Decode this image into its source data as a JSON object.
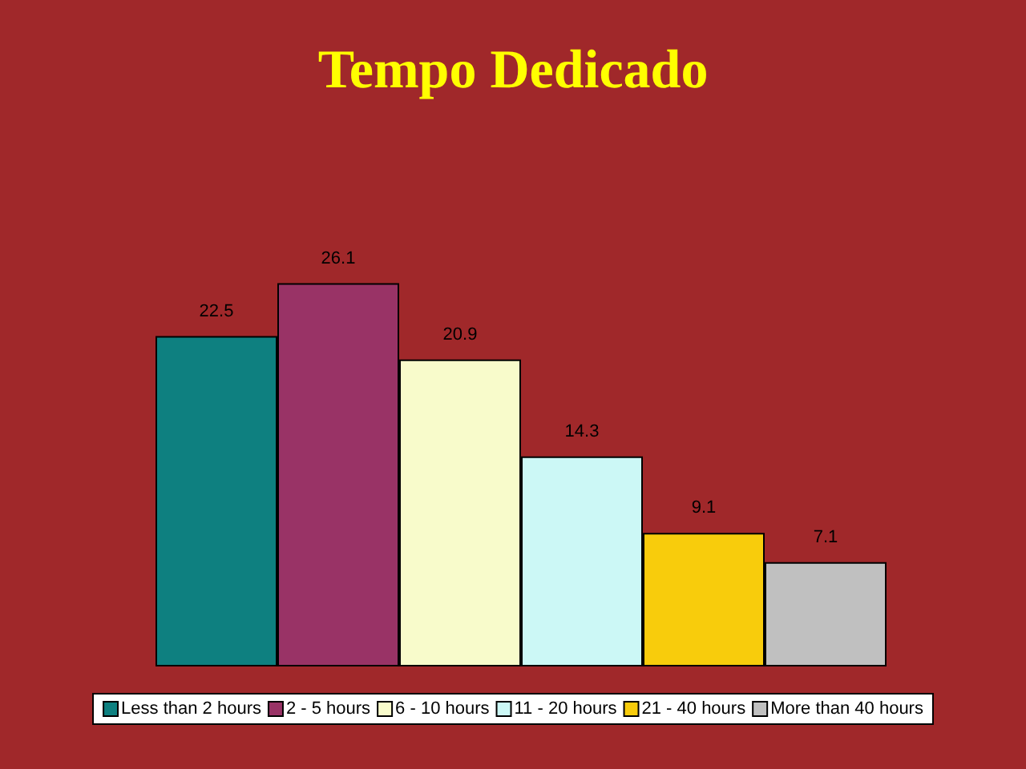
{
  "chart_data": {
    "type": "bar",
    "title": "Tempo Dedicado",
    "categories": [
      null
    ],
    "series": [
      {
        "name": "Less than 2 hours",
        "color": "#0e8080",
        "values": [
          22.5
        ]
      },
      {
        "name": "2 - 5 hours",
        "color": "#993366",
        "values": [
          26.1
        ]
      },
      {
        "name": "6 - 10 hours",
        "color": "#f8fbcb",
        "values": [
          20.9
        ]
      },
      {
        "name": "11 - 20 hours",
        "color": "#ccf8f6",
        "values": [
          14.3
        ]
      },
      {
        "name": "21 - 40 hours",
        "color": "#f8cc0c",
        "values": [
          9.1
        ]
      },
      {
        "name": "More than 40 hours",
        "color": "#c0c0c0",
        "values": [
          7.1
        ]
      }
    ],
    "data_labels": true,
    "legend": "bottom"
  }
}
